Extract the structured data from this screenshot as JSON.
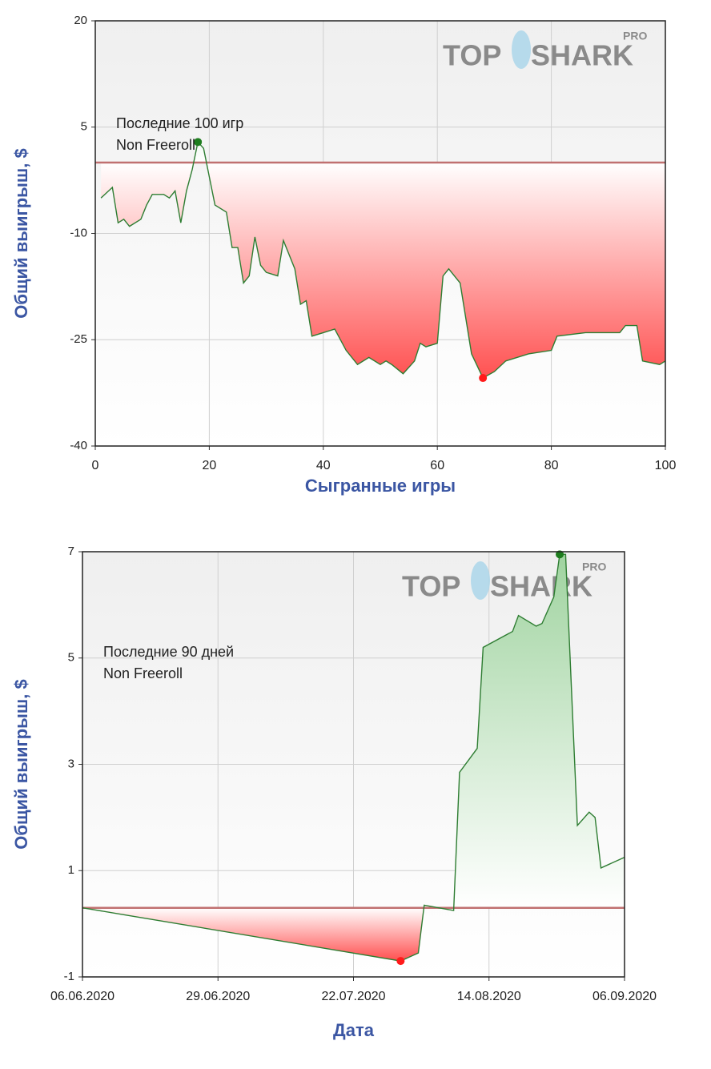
{
  "chart_data": [
    {
      "type": "line",
      "annotation": [
        "Последние 100 игр",
        "Non Freeroll"
      ],
      "x_label": "Сыгранные игры",
      "y_label": "Общий выигрыш, $",
      "watermark": [
        "TOP",
        "SHARK",
        "PRO"
      ],
      "x": [
        1,
        3,
        4,
        5,
        6,
        8,
        9,
        10,
        12,
        13,
        14,
        15,
        16,
        17,
        18,
        19,
        21,
        23,
        24,
        25,
        26,
        27,
        28,
        29,
        30,
        32,
        33,
        35,
        36,
        37,
        38,
        40,
        42,
        44,
        46,
        48,
        50,
        51,
        52,
        54,
        56,
        57,
        58,
        60,
        61,
        62,
        64,
        66,
        68,
        70,
        72,
        76,
        80,
        81,
        86,
        92,
        93,
        95,
        96,
        99,
        100
      ],
      "series": [
        {
          "name": "",
          "color": "#2e7d32",
          "values": [
            -5,
            -3.5,
            -8.5,
            -8,
            -9,
            -8,
            -6,
            -4.5,
            -4.5,
            -5,
            -4,
            -8.5,
            -4,
            -1,
            2.9,
            2,
            -6,
            -7,
            -12,
            -12,
            -17,
            -16,
            -10.5,
            -14.5,
            -15.5,
            -16,
            -11,
            -15,
            -20,
            -19.5,
            -24.5,
            -24,
            -23.5,
            -26.5,
            -28.5,
            -27.5,
            -28.5,
            -28,
            -28.5,
            -29.8,
            -28,
            -25.5,
            -26,
            -25.5,
            -16,
            -15,
            -17,
            -27,
            -30.4,
            -29.5,
            -28,
            -27,
            -26.5,
            -24.5,
            -24,
            -24,
            -23,
            -23,
            -28,
            -28.5,
            -28
          ]
        }
      ],
      "baseline": 0,
      "xlim": [
        0,
        100
      ],
      "xticks": [
        0,
        20,
        40,
        60,
        80,
        100
      ],
      "ylim": [
        -40,
        20
      ],
      "yticks": [
        20,
        5,
        -10,
        -25,
        -40
      ],
      "grid": true
    },
    {
      "type": "line",
      "annotation": [
        "Последние 90 дней",
        "Non Freeroll"
      ],
      "x_label": "Дата",
      "y_label": "Общий выигрыш, $",
      "watermark": [
        "TOP",
        "SHARK",
        "PRO"
      ],
      "x": [
        "06.06.2020",
        "30.07.2020",
        "02.08.2020",
        "03.08.2020",
        "08.08.2020",
        "09.08.2020",
        "11.08.2020",
        "12.08.2020",
        "13.08.2020",
        "18.08.2020",
        "19.08.2020",
        "22.08.2020",
        "23.08.2020",
        "25.08.2020",
        "26.08.2020",
        "27.08.2020",
        "29.08.2020",
        "31.08.2020",
        "01.09.2020",
        "02.09.2020",
        "06.09.2020"
      ],
      "series": [
        {
          "name": "",
          "color": "#2e7d32",
          "values": [
            0.3,
            -0.7,
            -0.55,
            0.35,
            0.25,
            2.85,
            3.15,
            3.3,
            5.2,
            5.5,
            5.8,
            5.6,
            5.65,
            6.15,
            6.95,
            6.95,
            1.85,
            2.1,
            2.0,
            1.05,
            1.25
          ]
        }
      ],
      "baseline": 0.3,
      "xlim": [
        "06.06.2020",
        "06.09.2020"
      ],
      "xticks": [
        "06.06.2020",
        "29.06.2020",
        "22.07.2020",
        "14.08.2020",
        "06.09.2020"
      ],
      "ylim": [
        -1,
        7
      ],
      "yticks": [
        7,
        5,
        3,
        1,
        -1
      ],
      "grid": true
    }
  ]
}
